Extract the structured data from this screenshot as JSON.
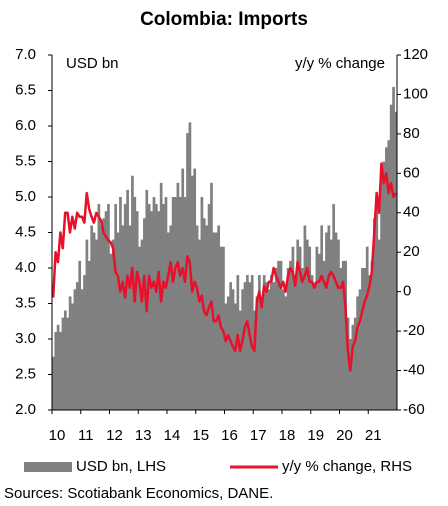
{
  "chart_data": {
    "type": "bar_line",
    "title": "Colombia: Imports",
    "y_label": "USD bn",
    "y2_label": "y/y % change",
    "source": "Sources: Scotiabank Economics, DANE.",
    "categories": [
      "10",
      null,
      null,
      null,
      null,
      null,
      null,
      null,
      null,
      null,
      null,
      null,
      "11",
      null,
      null,
      null,
      null,
      null,
      null,
      null,
      null,
      null,
      null,
      null,
      "12",
      null,
      null,
      null,
      null,
      null,
      null,
      null,
      null,
      null,
      null,
      null,
      "13",
      null,
      null,
      null,
      null,
      null,
      null,
      null,
      null,
      null,
      null,
      null,
      "14",
      null,
      null,
      null,
      null,
      null,
      null,
      null,
      null,
      null,
      null,
      null,
      "15",
      null,
      null,
      null,
      null,
      null,
      null,
      null,
      null,
      null,
      null,
      null,
      "16",
      null,
      null,
      null,
      null,
      null,
      null,
      null,
      null,
      null,
      null,
      null,
      "17",
      null,
      null,
      null,
      null,
      null,
      null,
      null,
      null,
      null,
      null,
      null,
      "18",
      null,
      null,
      null,
      null,
      null,
      null,
      null,
      null,
      null,
      null,
      null,
      "19",
      null,
      null,
      null,
      null,
      null,
      null,
      null,
      null,
      null,
      null,
      null,
      "20",
      null,
      null,
      null,
      null,
      null,
      null,
      null,
      null,
      null,
      null,
      null,
      "21",
      null,
      null,
      null,
      null,
      null,
      null,
      null,
      null,
      null,
      null,
      null
    ],
    "series": [
      {
        "name": "USD bn, LHS",
        "color": "#808080",
        "kind": "bar",
        "values": [
          2.75,
          3.1,
          3.2,
          3.1,
          3.3,
          3.4,
          3.3,
          3.6,
          3.5,
          3.7,
          3.8,
          4.1,
          3.7,
          3.9,
          4.4,
          4.1,
          4.6,
          4.5,
          4.4,
          4.9,
          4.6,
          4.7,
          4.8,
          4.9,
          4.2,
          4.4,
          4.9,
          4.5,
          5.0,
          4.6,
          4.9,
          5.1,
          4.6,
          5.3,
          5.0,
          4.8,
          4.3,
          4.4,
          4.7,
          5.1,
          4.9,
          4.8,
          5.0,
          4.9,
          4.8,
          5.2,
          4.9,
          5.0,
          4.5,
          4.6,
          5.0,
          5.0,
          5.2,
          5.0,
          5.4,
          5.0,
          5.9,
          6.05,
          5.3,
          5.4,
          4.6,
          4.4,
          5.0,
          4.7,
          4.6,
          4.9,
          5.2,
          4.5,
          4.5,
          4.6,
          4.3,
          4.3,
          3.5,
          3.6,
          3.8,
          3.7,
          3.5,
          3.9,
          3.4,
          3.7,
          3.8,
          3.9,
          3.8,
          3.9,
          3.4,
          3.6,
          3.9,
          3.5,
          3.9,
          3.8,
          3.7,
          3.9,
          3.8,
          4.0,
          4.1,
          4.1,
          3.7,
          3.6,
          4.0,
          4.1,
          4.3,
          3.9,
          4.4,
          4.3,
          4.0,
          4.6,
          4.4,
          4.3,
          3.9,
          3.8,
          4.3,
          4.2,
          4.6,
          4.1,
          4.5,
          4.6,
          4.4,
          4.9,
          4.5,
          4.4,
          4.0,
          4.1,
          4.1,
          3.3,
          3.0,
          3.2,
          3.3,
          3.6,
          3.7,
          4.0,
          4.0,
          4.3,
          3.9,
          4.1,
          4.7,
          4.9,
          4.4,
          5.3,
          5.5,
          5.7,
          5.8,
          6.3,
          6.55,
          6.2
        ]
      },
      {
        "name": "y/y % change, RHS",
        "color": "#e8102a",
        "kind": "line",
        "axis": "y2",
        "values": [
          -3,
          20,
          15,
          30,
          22,
          40,
          40,
          30,
          38,
          32,
          40,
          38,
          38,
          35,
          50,
          42,
          38,
          35,
          40,
          38,
          36,
          30,
          28,
          26,
          25,
          22,
          10,
          8,
          0,
          5,
          -3,
          8,
          2,
          12,
          -5,
          10,
          5,
          -5,
          8,
          -10,
          8,
          2,
          5,
          0,
          10,
          -5,
          5,
          2,
          8,
          15,
          5,
          12,
          15,
          8,
          12,
          5,
          18,
          15,
          0,
          5,
          2,
          -5,
          -2,
          -10,
          -12,
          -8,
          -5,
          -15,
          -15,
          -12,
          -18,
          -20,
          -25,
          -22,
          -25,
          -28,
          -30,
          -22,
          -30,
          -25,
          -18,
          -15,
          -22,
          -28,
          -30,
          -5,
          0,
          -8,
          3,
          0,
          5,
          5,
          12,
          8,
          5,
          2,
          5,
          0,
          8,
          12,
          10,
          3,
          15,
          10,
          5,
          8,
          12,
          5,
          5,
          2,
          5,
          5,
          8,
          5,
          2,
          8,
          10,
          8,
          5,
          2,
          2,
          5,
          -8,
          -30,
          -40,
          -28,
          -25,
          -18,
          -15,
          -10,
          -5,
          -2,
          3,
          10,
          30,
          50,
          40,
          65,
          55,
          60,
          50,
          55,
          48,
          50
        ]
      }
    ],
    "ylim": [
      2.0,
      7.0
    ],
    "yticks": [
      {
        "value": 2,
        "label": "2.0"
      },
      {
        "value": 2.5,
        "label": "2.5"
      },
      {
        "value": 3,
        "label": "3.0"
      },
      {
        "value": 3.5,
        "label": "3.5"
      },
      {
        "value": 4,
        "label": "4.0"
      },
      {
        "value": 4.5,
        "label": "4.5"
      },
      {
        "value": 5,
        "label": "5.0"
      },
      {
        "value": 5.5,
        "label": "5.5"
      },
      {
        "value": 6,
        "label": "6.0"
      },
      {
        "value": 6.5,
        "label": "6.5"
      },
      {
        "value": 7,
        "label": "7.0"
      }
    ],
    "y2lim": [
      -60,
      120
    ],
    "y2ticks": [
      -60,
      -40,
      -20,
      0,
      20,
      40,
      60,
      80,
      100,
      120
    ],
    "grid": false
  }
}
